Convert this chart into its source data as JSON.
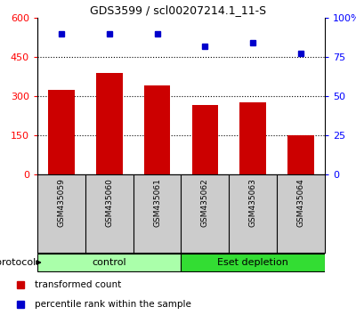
{
  "title": "GDS3599 / scl00207214.1_11-S",
  "samples": [
    "GSM435059",
    "GSM435060",
    "GSM435061",
    "GSM435062",
    "GSM435063",
    "GSM435064"
  ],
  "bar_values": [
    325,
    390,
    340,
    265,
    275,
    150
  ],
  "percentile_values": [
    90,
    90,
    90,
    82,
    84,
    77
  ],
  "bar_color": "#cc0000",
  "point_color": "#0000cc",
  "left_ylim": [
    0,
    600
  ],
  "left_yticks": [
    0,
    150,
    300,
    450,
    600
  ],
  "right_ylim": [
    0,
    100
  ],
  "right_yticks": [
    0,
    25,
    50,
    75,
    100
  ],
  "right_yticklabels": [
    "0",
    "25",
    "50",
    "75",
    "100%"
  ],
  "grid_lines": [
    150,
    300,
    450
  ],
  "group_labels": [
    "control",
    "Eset depletion"
  ],
  "group_colors": [
    "#aaffaa",
    "#33dd33"
  ],
  "group_ranges": [
    [
      0,
      3
    ],
    [
      3,
      6
    ]
  ],
  "protocol_label": "protocol",
  "legend_bar_label": "transformed count",
  "legend_point_label": "percentile rank within the sample",
  "bar_width": 0.55,
  "cell_bg_color": "#cccccc",
  "plot_bg_color": "#ffffff"
}
